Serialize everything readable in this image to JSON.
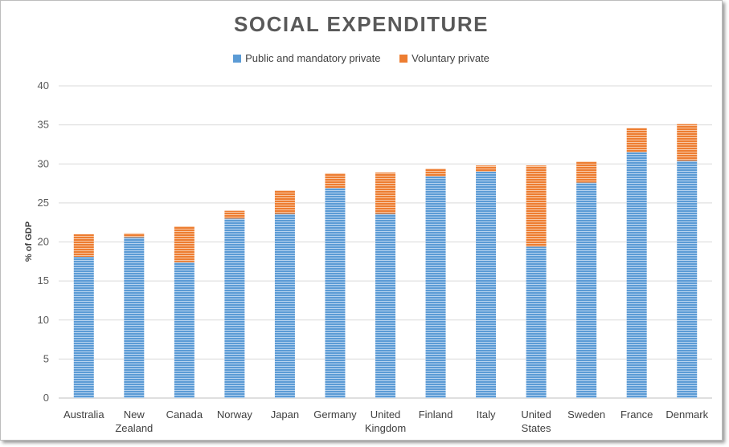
{
  "chart_data": {
    "type": "bar",
    "stacked": true,
    "title": "SOCIAL EXPENDITURE",
    "xlabel": "",
    "ylabel": "% of GDP",
    "ylim": [
      0,
      40
    ],
    "yticks": [
      0,
      5,
      10,
      15,
      20,
      25,
      30,
      35,
      40
    ],
    "grid": true,
    "legend_position": "top-center",
    "categories": [
      "Australia",
      "New Zealand",
      "Canada",
      "Norway",
      "Japan",
      "Germany",
      "United Kingdom",
      "Finland",
      "Italy",
      "United States",
      "Sweden",
      "France",
      "Denmark"
    ],
    "category_lines": [
      [
        "Australia"
      ],
      [
        "New",
        "Zealand"
      ],
      [
        "Canada"
      ],
      [
        "Norway"
      ],
      [
        "Japan"
      ],
      [
        "Germany"
      ],
      [
        "United",
        "Kingdom"
      ],
      [
        "Finland"
      ],
      [
        "Italy"
      ],
      [
        "United",
        "States"
      ],
      [
        "Sweden"
      ],
      [
        "France"
      ],
      [
        "Denmark"
      ]
    ],
    "series": [
      {
        "name": "Public and mandatory private",
        "color": "#5b9bd5",
        "values": [
          18.1,
          20.6,
          17.4,
          23.0,
          23.6,
          26.9,
          23.6,
          28.4,
          29.0,
          19.4,
          27.6,
          31.5,
          30.4
        ]
      },
      {
        "name": "Voluntary private",
        "color": "#ed7d31",
        "values": [
          2.9,
          0.5,
          4.6,
          1.0,
          3.0,
          1.9,
          5.3,
          1.0,
          0.8,
          10.4,
          2.7,
          3.1,
          4.7
        ]
      }
    ]
  }
}
